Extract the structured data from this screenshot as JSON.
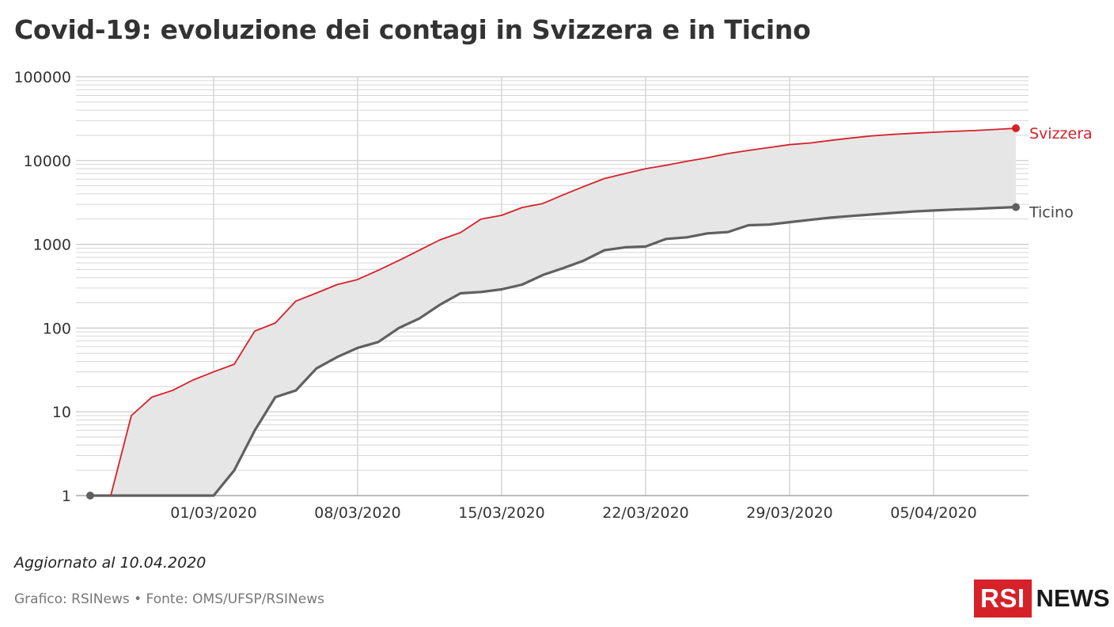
{
  "title": "Covid-19: evoluzione dei contagi in Svizzera e in Ticino",
  "updated": "Aggiornato al 10.04.2020",
  "source": "Grafico: RSINews • Fonte: OMS/UFSP/RSINews",
  "logo": {
    "box_text": "RSI",
    "news_text": "NEWS"
  },
  "colors": {
    "svizzera": "#d62128",
    "ticino": "#606060",
    "band": "#e6e6e6",
    "grid": "#d6d6d6",
    "axis": "#999999"
  },
  "chart_data": {
    "type": "line",
    "scale": "log",
    "ylim": [
      1,
      100000
    ],
    "y_ticks": [
      "1",
      "10",
      "100",
      "1000",
      "10000",
      "100000"
    ],
    "x_tick_labels": [
      "01/03/2020",
      "08/03/2020",
      "15/03/2020",
      "22/03/2020",
      "29/03/2020",
      "05/04/2020"
    ],
    "x_start": "2020-02-24",
    "x_end": "2020-04-09",
    "grid": true,
    "legend": "inline-right",
    "series": [
      {
        "name": "Svizzera",
        "color": "#d62128",
        "values": [
          [
            "2020-02-25",
            1
          ],
          [
            "2020-02-26",
            9
          ],
          [
            "2020-02-27",
            15
          ],
          [
            "2020-02-28",
            18
          ],
          [
            "2020-02-29",
            24
          ],
          [
            "2020-03-01",
            30
          ],
          [
            "2020-03-02",
            37
          ],
          [
            "2020-03-03",
            92
          ],
          [
            "2020-03-04",
            115
          ],
          [
            "2020-03-05",
            210
          ],
          [
            "2020-03-06",
            262
          ],
          [
            "2020-03-07",
            330
          ],
          [
            "2020-03-08",
            380
          ],
          [
            "2020-03-09",
            490
          ],
          [
            "2020-03-10",
            640
          ],
          [
            "2020-03-11",
            850
          ],
          [
            "2020-03-12",
            1130
          ],
          [
            "2020-03-13",
            1380
          ],
          [
            "2020-03-14",
            2000
          ],
          [
            "2020-03-15",
            2220
          ],
          [
            "2020-03-16",
            2750
          ],
          [
            "2020-03-17",
            3070
          ],
          [
            "2020-03-18",
            3900
          ],
          [
            "2020-03-19",
            4900
          ],
          [
            "2020-03-20",
            6100
          ],
          [
            "2020-03-21",
            7000
          ],
          [
            "2020-03-22",
            8000
          ],
          [
            "2020-03-23",
            8800
          ],
          [
            "2020-03-24",
            9800
          ],
          [
            "2020-03-25",
            10800
          ],
          [
            "2020-03-26",
            12100
          ],
          [
            "2020-03-27",
            13200
          ],
          [
            "2020-03-28",
            14300
          ],
          [
            "2020-03-29",
            15500
          ],
          [
            "2020-03-30",
            16200
          ],
          [
            "2020-03-31",
            17400
          ],
          [
            "2020-04-01",
            18600
          ],
          [
            "2020-04-02",
            19700
          ],
          [
            "2020-04-03",
            20500
          ],
          [
            "2020-04-04",
            21200
          ],
          [
            "2020-04-05",
            21800
          ],
          [
            "2020-04-06",
            22300
          ],
          [
            "2020-04-07",
            22800
          ],
          [
            "2020-04-08",
            23500
          ],
          [
            "2020-04-09",
            24300
          ]
        ]
      },
      {
        "name": "Ticino",
        "color": "#606060",
        "values": [
          [
            "2020-02-24",
            1
          ],
          [
            "2020-02-25",
            1
          ],
          [
            "2020-02-26",
            1
          ],
          [
            "2020-02-27",
            1
          ],
          [
            "2020-02-28",
            1
          ],
          [
            "2020-02-29",
            1
          ],
          [
            "2020-03-01",
            1
          ],
          [
            "2020-03-02",
            2
          ],
          [
            "2020-03-03",
            6
          ],
          [
            "2020-03-04",
            15
          ],
          [
            "2020-03-05",
            18
          ],
          [
            "2020-03-06",
            33
          ],
          [
            "2020-03-07",
            45
          ],
          [
            "2020-03-08",
            58
          ],
          [
            "2020-03-09",
            68
          ],
          [
            "2020-03-10",
            100
          ],
          [
            "2020-03-11",
            130
          ],
          [
            "2020-03-12",
            190
          ],
          [
            "2020-03-13",
            260
          ],
          [
            "2020-03-14",
            270
          ],
          [
            "2020-03-15",
            290
          ],
          [
            "2020-03-16",
            330
          ],
          [
            "2020-03-17",
            430
          ],
          [
            "2020-03-18",
            520
          ],
          [
            "2020-03-19",
            640
          ],
          [
            "2020-03-20",
            850
          ],
          [
            "2020-03-21",
            920
          ],
          [
            "2020-03-22",
            940
          ],
          [
            "2020-03-23",
            1160
          ],
          [
            "2020-03-24",
            1210
          ],
          [
            "2020-03-25",
            1350
          ],
          [
            "2020-03-26",
            1400
          ],
          [
            "2020-03-27",
            1690
          ],
          [
            "2020-03-28",
            1720
          ],
          [
            "2020-03-29",
            1840
          ],
          [
            "2020-03-30",
            1960
          ],
          [
            "2020-03-31",
            2080
          ],
          [
            "2020-04-01",
            2180
          ],
          [
            "2020-04-02",
            2270
          ],
          [
            "2020-04-03",
            2370
          ],
          [
            "2020-04-04",
            2460
          ],
          [
            "2020-04-05",
            2530
          ],
          [
            "2020-04-06",
            2600
          ],
          [
            "2020-04-07",
            2650
          ],
          [
            "2020-04-08",
            2720
          ],
          [
            "2020-04-09",
            2780
          ]
        ]
      }
    ]
  }
}
